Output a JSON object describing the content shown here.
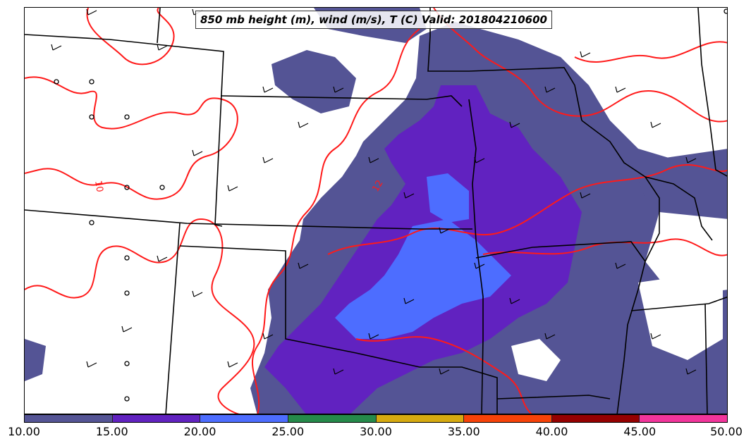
{
  "map": {
    "title": "850 mb height (m), wind (m/s), T (C) Valid: 201804210600",
    "contour_label": "10",
    "contour_label_2": "12"
  },
  "colorbar": {
    "ticks": [
      "10.00",
      "15.00",
      "20.00",
      "25.00",
      "30.00",
      "35.00",
      "40.00",
      "45.00",
      "50.00"
    ],
    "colors": [
      "#545495",
      "#6122c0",
      "#4d6dff",
      "#258a4a",
      "#d6aa10",
      "#f74208",
      "#950000",
      "#f2359b"
    ]
  },
  "colors": {
    "band_10_15": "#545495",
    "band_15_20": "#6122c0",
    "band_20_25": "#4d6dff",
    "temperature_contour": "#ff1a1a",
    "state_border": "#000000"
  }
}
